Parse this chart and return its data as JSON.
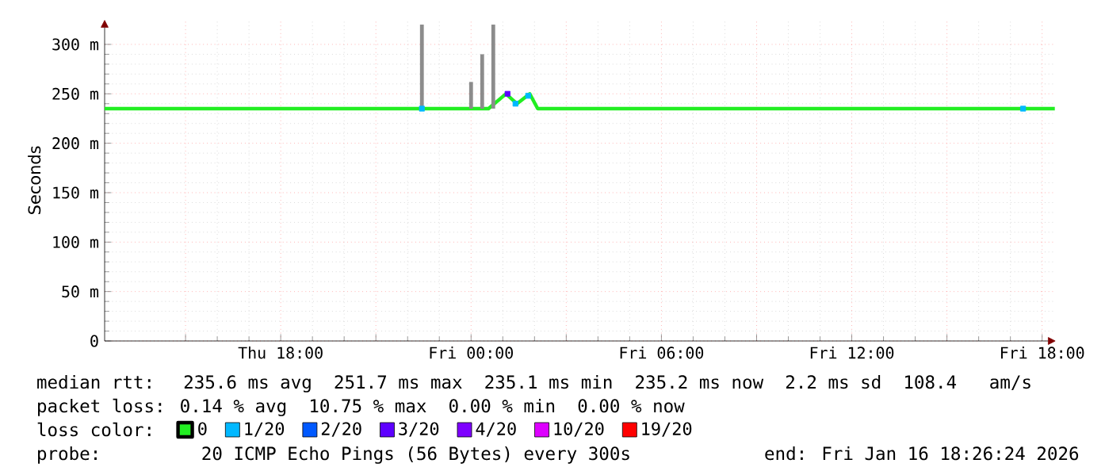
{
  "chart_data": {
    "type": "line",
    "ylabel": "Seconds",
    "xlim": [
      "2026-01-15T12:27",
      "2026-01-16T18:26"
    ],
    "xticks": [
      {
        "value": "2026-01-15T15:00",
        "label": null
      },
      {
        "value": "2026-01-15T18:00",
        "label": "Thu 18:00"
      },
      {
        "value": "2026-01-15T21:00",
        "label": null
      },
      {
        "value": "2026-01-16T00:00",
        "label": "Fri 00:00"
      },
      {
        "value": "2026-01-16T03:00",
        "label": null
      },
      {
        "value": "2026-01-16T06:00",
        "label": "Fri 06:00"
      },
      {
        "value": "2026-01-16T09:00",
        "label": null
      },
      {
        "value": "2026-01-16T12:00",
        "label": "Fri 12:00"
      },
      {
        "value": "2026-01-16T15:00",
        "label": null
      },
      {
        "value": "2026-01-16T18:00",
        "label": "Fri 18:00"
      }
    ],
    "ylim": [
      0,
      325
    ],
    "yticks": [
      0,
      {
        "value": 50,
        "label": "50 m"
      },
      {
        "value": 100,
        "label": "100 m"
      },
      {
        "value": 150,
        "label": "150 m"
      },
      {
        "value": 200,
        "label": "200 m"
      },
      {
        "value": 250,
        "label": "250 m"
      },
      {
        "value": 300,
        "label": "300 m"
      }
    ],
    "grid": true,
    "legend": "bottom",
    "legend_title": "loss color:",
    "series": [
      {
        "name": "0",
        "color": "#22ee22",
        "x": [
          "2026-01-15T12:27",
          "2026-01-16T00:33",
          "2026-01-16T01:06",
          "2026-01-16T01:27",
          "2026-01-16T01:51",
          "2026-01-16T02:06",
          "2026-01-16T18:24"
        ],
        "values": [
          235,
          235,
          250,
          240,
          250,
          235,
          235
        ]
      },
      {
        "name": "1/20",
        "color": "#00b8ff",
        "type": "scatter",
        "marker": "square",
        "x": [
          "2026-01-15T22:27",
          "2026-01-16T01:24",
          "2026-01-16T01:48",
          "2026-01-16T17:24"
        ],
        "values": [
          235,
          240,
          248,
          235
        ]
      },
      {
        "name": "2/20",
        "color": "#0059ff",
        "type": "scatter",
        "marker": "square"
      },
      {
        "name": "3/20",
        "color": "#5e00ff",
        "type": "scatter",
        "marker": "square",
        "x": [
          "2026-01-16T01:09"
        ],
        "values": [
          250
        ]
      },
      {
        "name": "4/20",
        "color": "#7e00ff",
        "type": "scatter",
        "marker": "square"
      },
      {
        "name": "10/20",
        "color": "#dd00ff",
        "type": "scatter",
        "marker": "square"
      },
      {
        "name": "19/20",
        "color": "#ff0000",
        "type": "scatter",
        "marker": "square"
      },
      {
        "color": "#8c8c8c",
        "type": "bar",
        "x": [
          "2026-01-15T22:27",
          "2026-01-16T00:00",
          "2026-01-16T00:21",
          "2026-01-16T00:42"
        ],
        "base": [
          235,
          235,
          235,
          235
        ],
        "values": [
          85,
          27,
          55,
          85
        ]
      }
    ],
    "annotations": [
      "median rtt:  235.6 ms avg  251.7 ms max  235.1 ms min  235.2 ms now  2.2 ms sd  108.4   am/s",
      "packet loss: 0.14 % avg  10.75 % max  0.00 % min  0.00 % now",
      "probe:       20 ICMP Echo Pings (56 Bytes) every 300s",
      "end: Fri Jan 16 18:26:24 2026"
    ]
  }
}
